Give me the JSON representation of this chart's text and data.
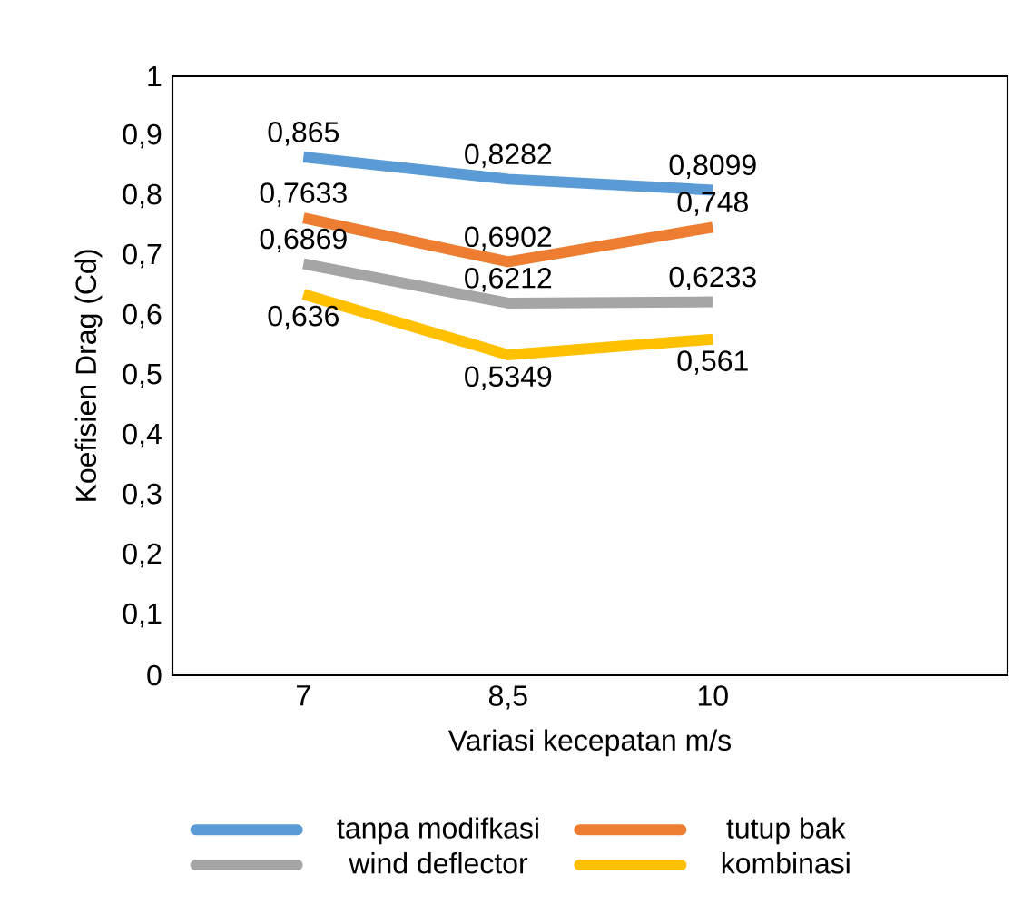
{
  "chart_data": {
    "type": "line",
    "xlabel": "Variasi kecepatan m/s",
    "ylabel": "Koefisien Drag (Cd)",
    "categories": [
      "7",
      "8,5",
      "10"
    ],
    "series": [
      {
        "name": "tanpa modifkasi",
        "color": "#5b9bd5",
        "values": [
          0.865,
          0.8282,
          0.8099
        ],
        "value_labels": [
          "0,865",
          "0,8282",
          "0,8099"
        ]
      },
      {
        "name": "tutup bak",
        "color": "#ed7d31",
        "values": [
          0.7633,
          0.6902,
          0.748
        ],
        "value_labels": [
          "0,7633",
          "0,6902",
          "0,748"
        ]
      },
      {
        "name": "wind deflector",
        "color": "#a5a5a5",
        "values": [
          0.6869,
          0.6212,
          0.6233
        ],
        "value_labels": [
          "0,6869",
          "0,6212",
          "0,6233"
        ]
      },
      {
        "name": "kombinasi",
        "color": "#ffc000",
        "values": [
          0.636,
          0.5349,
          0.561
        ],
        "value_labels": [
          "0,636",
          "0,5349",
          "0,561"
        ]
      }
    ],
    "ylim": [
      0,
      1
    ],
    "yticks": [
      0,
      {
        "value": 0.1,
        "label": "0,1"
      },
      {
        "value": 0.2,
        "label": "0,2"
      },
      {
        "value": 0.3,
        "label": "0,3"
      },
      {
        "value": 0.4,
        "label": "0,4"
      },
      {
        "value": 0.5,
        "label": "0,5"
      },
      {
        "value": 0.6,
        "label": "0,6"
      },
      {
        "value": 0.7,
        "label": "0,7"
      },
      {
        "value": 0.8,
        "label": "0,8"
      },
      {
        "value": 0.9,
        "label": "0,9"
      },
      1
    ],
    "grid": false,
    "legend": "bottom",
    "marker": "none",
    "line_style": "solid"
  }
}
